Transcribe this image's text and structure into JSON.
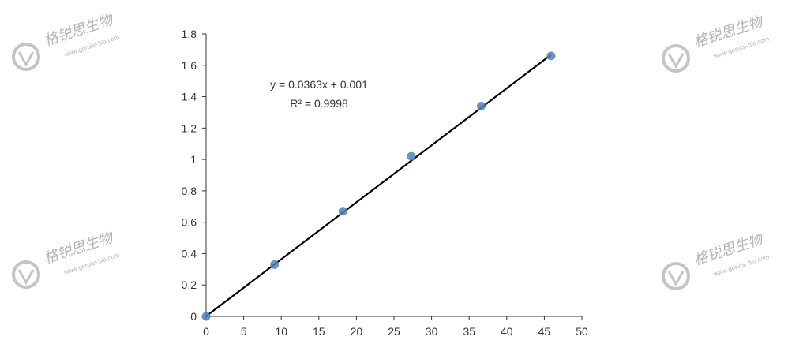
{
  "watermark": {
    "text_cn": "格锐思生物",
    "text_en": "www.geruisi-bio.com"
  },
  "chart_data": {
    "type": "scatter",
    "title": "",
    "xlabel": "",
    "ylabel": "",
    "xlim": [
      0,
      50
    ],
    "ylim": [
      0,
      1.8
    ],
    "x_ticks": [
      0,
      5,
      10,
      15,
      20,
      25,
      30,
      35,
      40,
      45,
      50
    ],
    "x_tick_labels": [
      "0",
      "5",
      "10",
      "15",
      "20",
      "25",
      "30",
      "35",
      "40",
      "45",
      "50"
    ],
    "y_ticks": [
      0,
      0.2,
      0.4,
      0.6,
      0.8,
      1,
      1.2,
      1.4,
      1.6,
      1.8
    ],
    "y_tick_labels": [
      "0",
      "0.2",
      "0.4",
      "0.6",
      "0.8",
      "1",
      "1.2",
      "1.4",
      "1.6",
      "1.8"
    ],
    "grid": false,
    "series": [
      {
        "x": [
          0,
          9.1,
          18.2,
          27.3,
          36.6,
          45.9
        ],
        "y": [
          0,
          0.33,
          0.67,
          1.02,
          1.34,
          1.66
        ],
        "marker_color": "#4f81bd"
      }
    ],
    "trendline": {
      "slope": 0.0363,
      "intercept": 0.001,
      "x_range": [
        0,
        45.9
      ],
      "color": "#000000"
    },
    "equation": "y = 0.0363x + 0.001",
    "r_squared_label": "R² = 0.9998"
  }
}
